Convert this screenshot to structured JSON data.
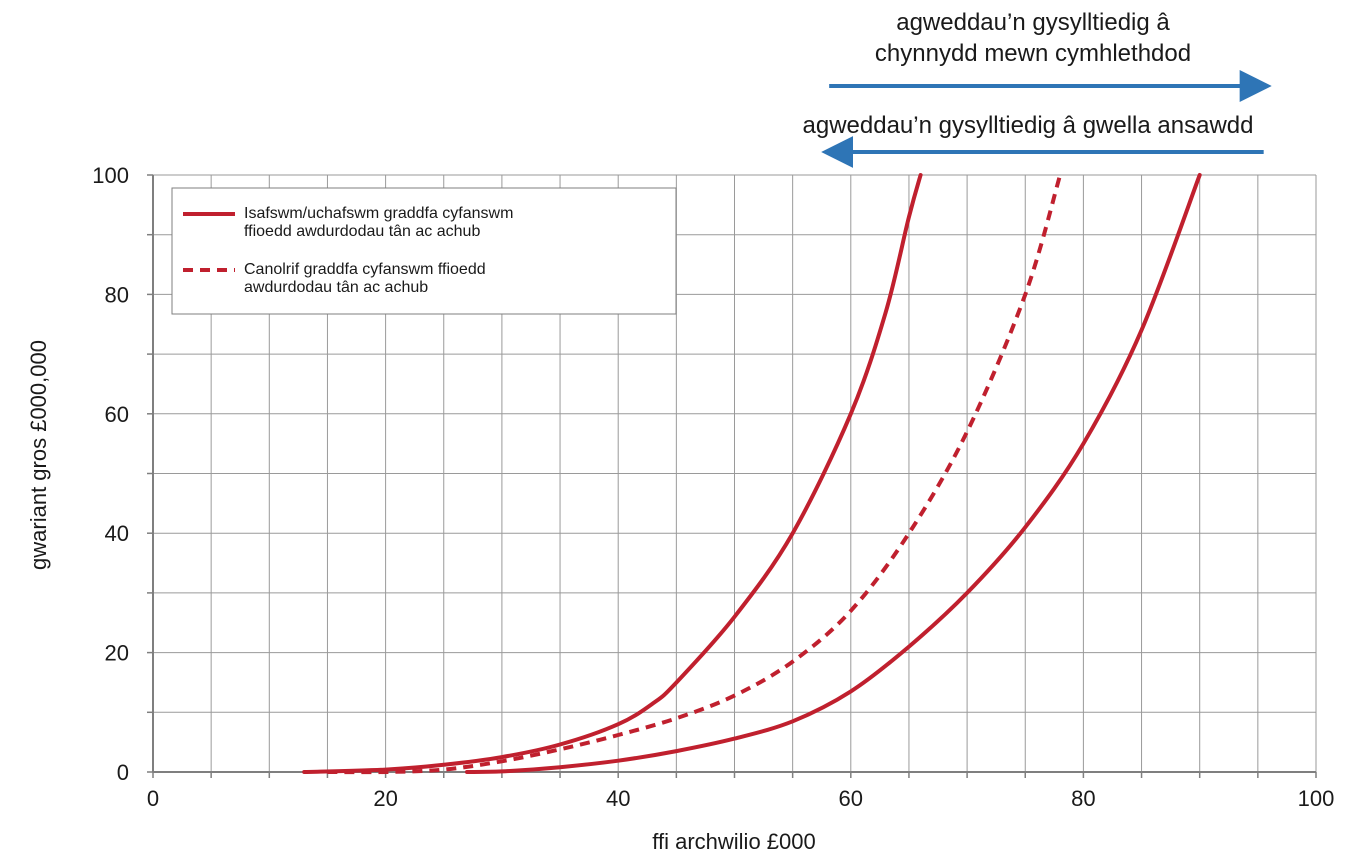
{
  "chart_data": {
    "type": "line",
    "title": "",
    "xlabel": "ffi archwilio £000",
    "ylabel": "gwariant gros £000,000",
    "xlim": [
      0,
      100
    ],
    "ylim": [
      0,
      100
    ],
    "x_ticks": [
      0,
      20,
      40,
      60,
      80,
      100
    ],
    "y_ticks": [
      0,
      20,
      40,
      60,
      80,
      100
    ],
    "grid": true,
    "x_grid_step": 5,
    "y_grid_step": 10,
    "legend_position": "top-left",
    "series": [
      {
        "legend_group": 0,
        "style": "solid",
        "color": "#c0202e",
        "points": [
          [
            13,
            0
          ],
          [
            20,
            0.4
          ],
          [
            25,
            1.2
          ],
          [
            30,
            2.5
          ],
          [
            35,
            4.6
          ],
          [
            40,
            8
          ],
          [
            43,
            11.5
          ],
          [
            45,
            15
          ],
          [
            50,
            26
          ],
          [
            55,
            40
          ],
          [
            60,
            60
          ],
          [
            63,
            77
          ],
          [
            65,
            93
          ],
          [
            66,
            100
          ]
        ]
      },
      {
        "legend_group": 0,
        "style": "solid",
        "color": "#c0202e",
        "points": [
          [
            27,
            0
          ],
          [
            30,
            0.1
          ],
          [
            35,
            0.8
          ],
          [
            40,
            1.9
          ],
          [
            45,
            3.5
          ],
          [
            50,
            5.6
          ],
          [
            55,
            8.5
          ],
          [
            60,
            13.5
          ],
          [
            65,
            21
          ],
          [
            70,
            30
          ],
          [
            75,
            41
          ],
          [
            80,
            55
          ],
          [
            85,
            74
          ],
          [
            90,
            100
          ]
        ]
      },
      {
        "legend_group": 1,
        "style": "dashed",
        "color": "#c0202e",
        "points": [
          [
            15,
            0
          ],
          [
            20,
            0
          ],
          [
            25,
            0.4
          ],
          [
            30,
            1.8
          ],
          [
            35,
            3.8
          ],
          [
            40,
            6.2
          ],
          [
            45,
            9
          ],
          [
            50,
            12.8
          ],
          [
            55,
            18.5
          ],
          [
            60,
            27
          ],
          [
            65,
            40
          ],
          [
            70,
            57
          ],
          [
            75,
            80
          ],
          [
            78,
            100
          ]
        ]
      }
    ],
    "legend": [
      {
        "style": "solid",
        "label_lines": [
          "Isafswm/uchafswm graddfa cyfanswm",
          "ffioedd awdurdodau tân ac achub"
        ]
      },
      {
        "style": "dashed",
        "label_lines": [
          "Canolrif graddfa cyfanswm ffioedd",
          "awdurdodau tân ac achub"
        ]
      }
    ],
    "annotations": [
      {
        "label_lines": [
          "agweddau’n gysylltiedig â",
          "chynnydd mewn cymhlethdod"
        ],
        "arrow_direction": "right",
        "arrow_from_x": 59,
        "arrow_to_x": 95.5
      },
      {
        "label_lines": [
          "agweddau’n gysylltiedig â gwella ansawdd"
        ],
        "arrow_direction": "left",
        "arrow_from_x": 95.5,
        "arrow_to_x": 59
      }
    ],
    "colors": {
      "series": "#c0202e",
      "arrow": "#2e75b6",
      "grid": "#9a9a9a",
      "axis": "#7f7f7f"
    }
  }
}
